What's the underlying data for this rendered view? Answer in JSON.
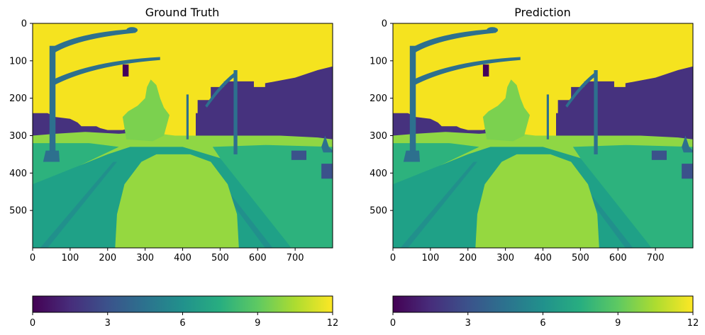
{
  "chart_data": [
    {
      "type": "heatmap",
      "title": "Ground Truth",
      "image_size": {
        "width": 800,
        "height": 600
      },
      "xlim": [
        0,
        800
      ],
      "ylim": [
        600,
        0
      ],
      "xticks": [
        0,
        100,
        200,
        300,
        400,
        500,
        600,
        700
      ],
      "yticks": [
        0,
        100,
        200,
        300,
        400,
        500
      ],
      "colormap": "viridis",
      "colorbar": {
        "range": [
          0,
          12
        ],
        "ticks": [
          0,
          3,
          6,
          9,
          12
        ],
        "placement": "bottom"
      },
      "grid": false
    },
    {
      "type": "heatmap",
      "title": "Prediction",
      "image_size": {
        "width": 800,
        "height": 600
      },
      "xlim": [
        0,
        800
      ],
      "ylim": [
        600,
        0
      ],
      "xticks": [
        0,
        100,
        200,
        300,
        400,
        500,
        600,
        700
      ],
      "yticks": [
        0,
        100,
        200,
        300,
        400,
        500
      ],
      "colormap": "viridis",
      "colorbar": {
        "range": [
          0,
          12
        ],
        "ticks": [
          0,
          3,
          6,
          9,
          12
        ],
        "placement": "bottom"
      },
      "grid": false
    }
  ],
  "palette": {
    "sky": "#f5e31f",
    "building": "#46327e",
    "pole": "#2d708e",
    "vegetation": "#8fd744",
    "tree_light": "#7bd14f",
    "road": "#1fa187",
    "sidewalk": "#2db27d",
    "car": "#95d840",
    "traffic_light": "#44015c",
    "lane": "#21908c",
    "sign": "#3b528b"
  }
}
